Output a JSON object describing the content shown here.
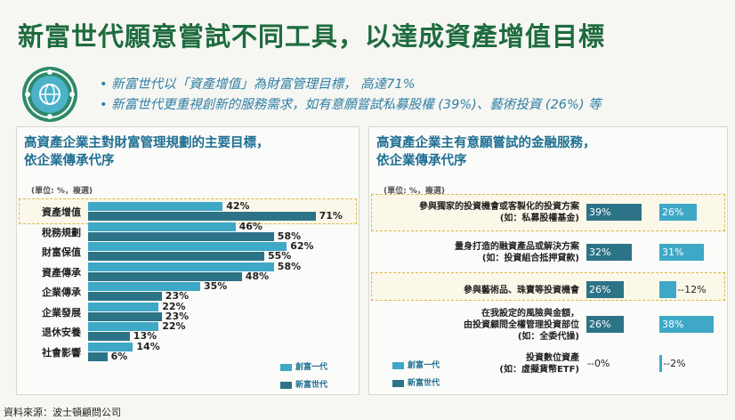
{
  "title": "新富世代願意嘗試不同工具，以達成資產增值目標",
  "bullets": [
    "新富世代以「資產增值」為財富管理目標， 高達71%",
    "新富世代更重視創新的服務需求，如有意願嘗試私募股權 (39%)、藝術投資 (26%) 等"
  ],
  "colors": {
    "series_first_gen": "#3fa8c6",
    "series_new_gen": "#2d7387",
    "title_green": "#1e6b3e",
    "accent_blue": "#1f6f93",
    "highlight": "#d9b84a"
  },
  "source": "資料來源：波士頓顧問公司",
  "chart_data": [
    {
      "type": "bar",
      "orientation": "horizontal",
      "title_lines": [
        "高資產企業主對財富管理規劃的主要目標，",
        "依企業傳承代序"
      ],
      "unit": "(單位: %，複選)",
      "categories": [
        "資產增值",
        "稅務規劃",
        "財富保值",
        "資產傳承",
        "企業傳承",
        "企業發展",
        "退休安養",
        "社會影響"
      ],
      "highlighted_category": "資產增值",
      "series": [
        {
          "name": "創富一代",
          "values": [
            42,
            46,
            62,
            58,
            35,
            22,
            22,
            14
          ],
          "labels": [
            "42%",
            "46%",
            "62%",
            "58%",
            "35%",
            "22%",
            "22%",
            "14%"
          ]
        },
        {
          "name": "新富世代",
          "values": [
            71,
            58,
            55,
            48,
            23,
            23,
            13,
            6
          ],
          "labels": [
            "71%",
            "58%",
            "55%",
            "48%",
            "23%",
            "23%",
            "13%",
            "6%"
          ]
        }
      ],
      "xlim": [
        0,
        75
      ]
    },
    {
      "type": "bar",
      "orientation": "horizontal",
      "title_lines": [
        "高資產企業主有意願嘗試的金融服務，",
        "依企業傳承代序"
      ],
      "unit": "(單位: %，複選)",
      "categories": [
        [
          "參與獨家的投資機會或客製化的投資方案",
          "(如：私募股權基金)"
        ],
        [
          "量身打造的融資產品或解決方案",
          "(如：投資組合抵押貸款)"
        ],
        [
          "參與藝術品、珠寶等投資機會"
        ],
        [
          "在我設定的風險與金額，",
          "由投資顧問全權管理投資部位",
          "(如：全委代操)"
        ],
        [
          "投資數位資產",
          "(如：虛擬貨幣ETF)"
        ]
      ],
      "highlighted_rows": [
        0,
        2
      ],
      "series": [
        {
          "name": "新富世代",
          "values": [
            39,
            32,
            26,
            26,
            0
          ],
          "labels": [
            "39%",
            "32%",
            "26%",
            "26%",
            "0%"
          ]
        },
        {
          "name": "創富一代",
          "values": [
            26,
            31,
            12,
            38,
            2
          ],
          "labels": [
            "26%",
            "31%",
            "12%",
            "38%",
            "2%"
          ]
        }
      ],
      "legend": [
        "創富一代",
        "新富世代"
      ],
      "xlim": [
        0,
        40
      ]
    }
  ]
}
